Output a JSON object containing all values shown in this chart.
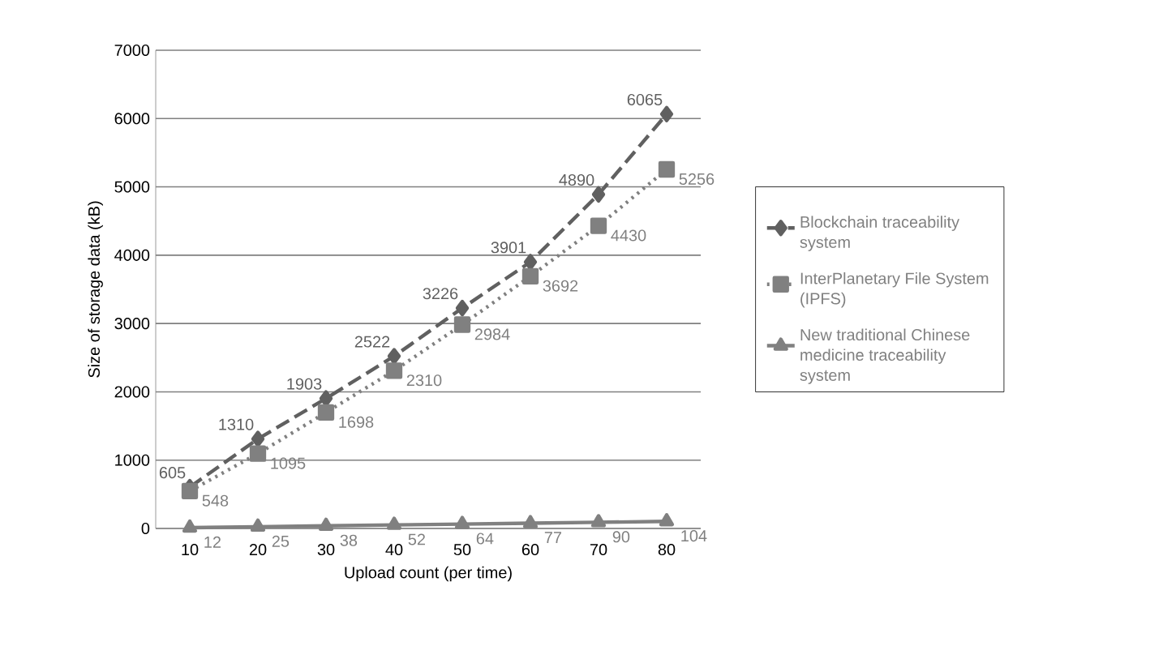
{
  "chart_data": {
    "type": "line",
    "xlabel": "Upload count (per time)",
    "ylabel": "Size of storage data (kB)",
    "categories": [
      "10",
      "20",
      "30",
      "40",
      "50",
      "60",
      "70",
      "80"
    ],
    "series": [
      {
        "name": "Blockchain traceability system",
        "color": "#606060",
        "values": [
          605,
          1310,
          1903,
          2522,
          3226,
          3901,
          4890,
          6065
        ],
        "marker": "diamond",
        "line_style": "dashed"
      },
      {
        "name": "InterPlanetary File System (IPFS)",
        "color": "#808080",
        "values": [
          548,
          1095,
          1698,
          2310,
          2984,
          3692,
          4430,
          5256
        ],
        "marker": "square",
        "line_style": "dotted"
      },
      {
        "name": "New traditional Chinese medicine traceability system",
        "color": "#808080",
        "values": [
          12,
          25,
          38,
          52,
          64,
          77,
          90,
          104
        ],
        "marker": "triangle",
        "line_style": "solid"
      }
    ],
    "ylim": [
      0,
      7000
    ],
    "yticks": [
      0,
      1000,
      2000,
      3000,
      4000,
      5000,
      6000,
      7000
    ],
    "grid": "y",
    "legend": "right",
    "data_labels": true
  }
}
